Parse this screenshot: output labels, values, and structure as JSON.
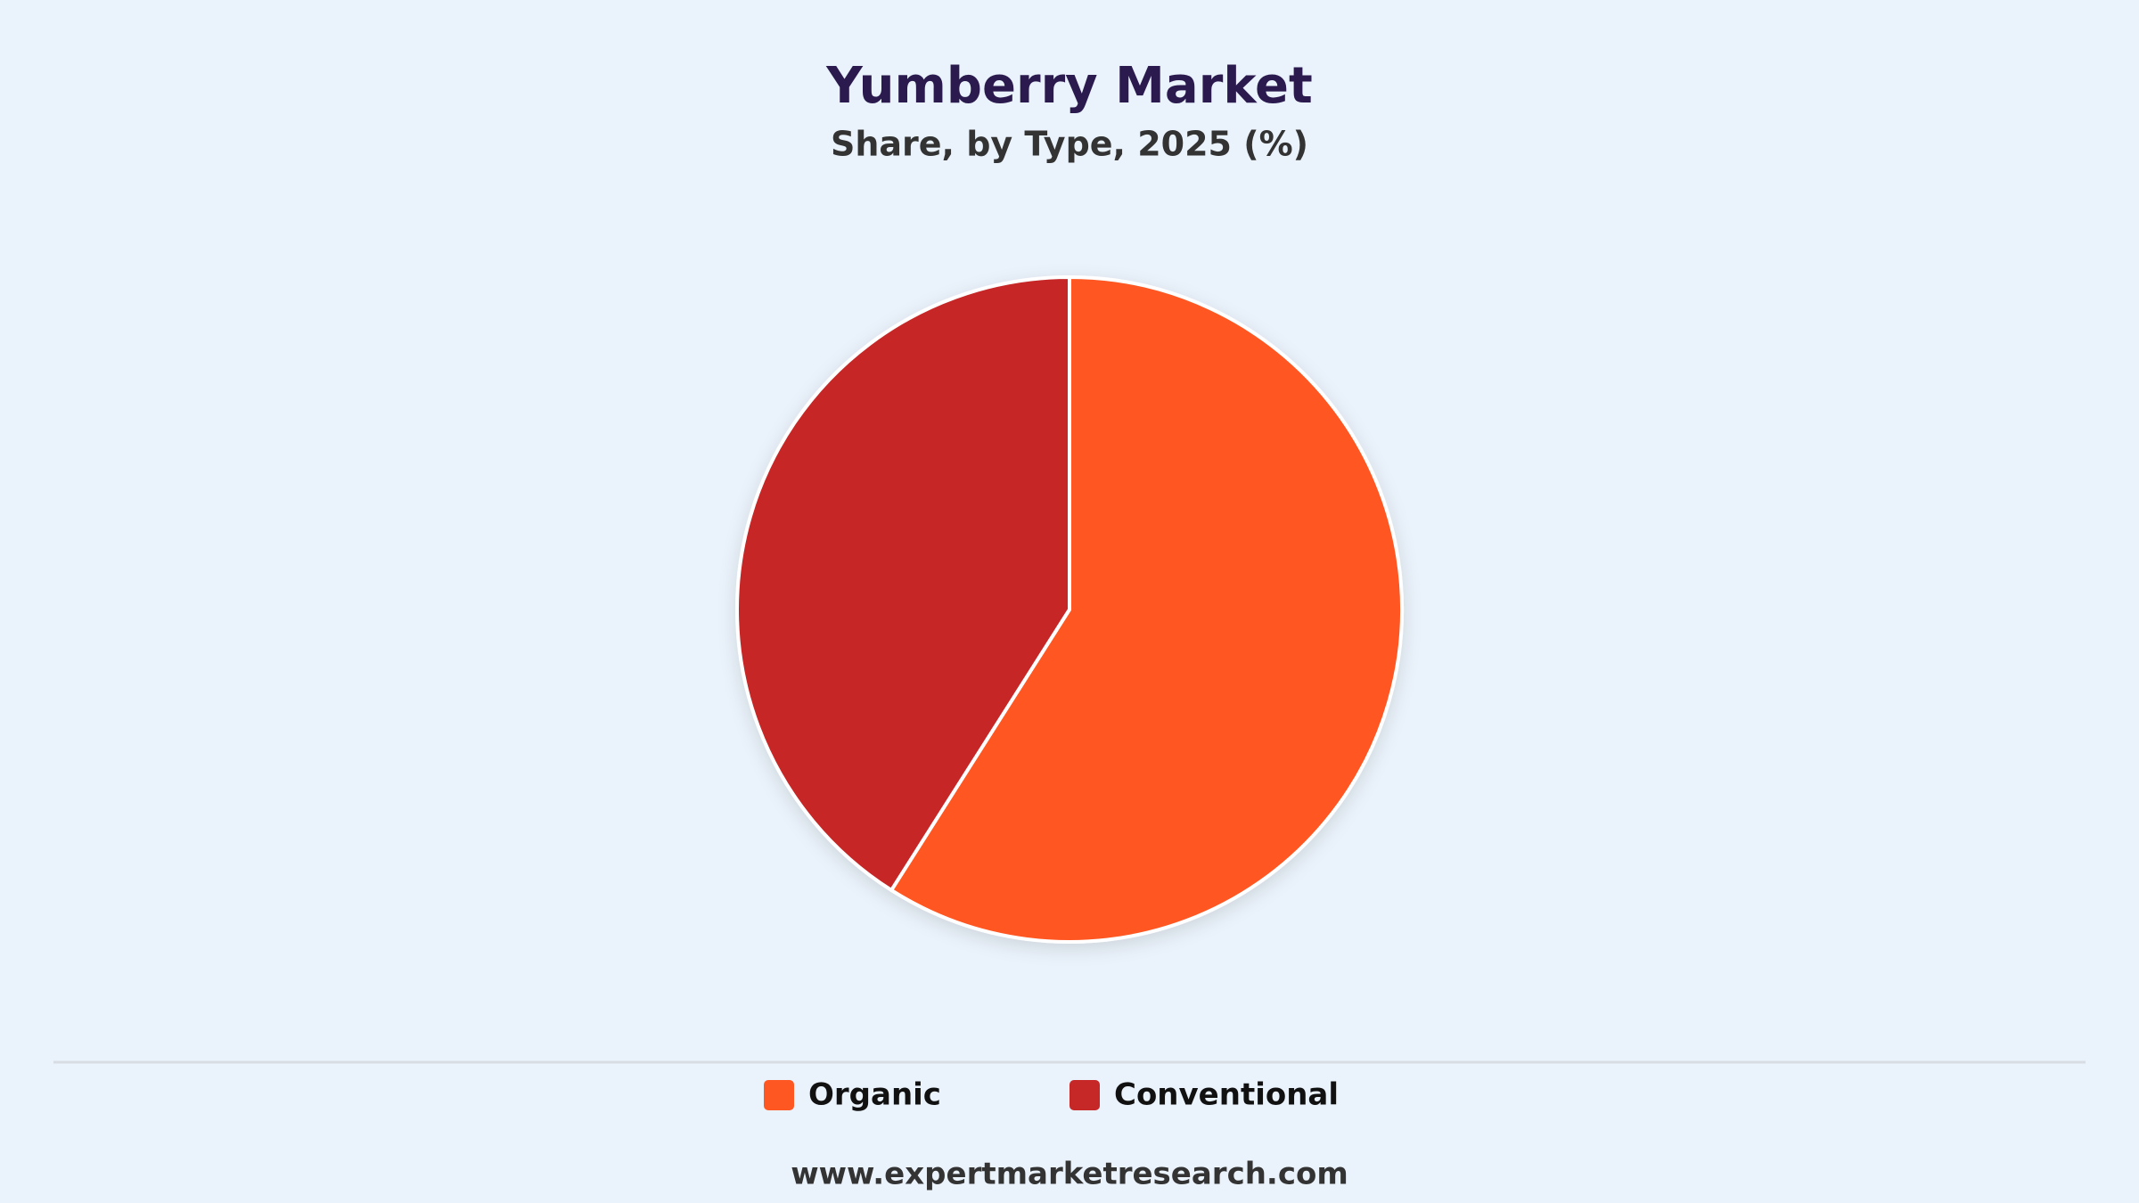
{
  "chart_data": {
    "type": "pie",
    "title": "Yumberry Market",
    "subtitle": "Share, by Type, 2025 (%)",
    "categories": [
      "Organic",
      "Conventional"
    ],
    "values": [
      59,
      41
    ],
    "colors": [
      "#ff5722",
      "#c62828"
    ],
    "legend": "bottom"
  },
  "footer": "www.expertmarketresearch.com"
}
